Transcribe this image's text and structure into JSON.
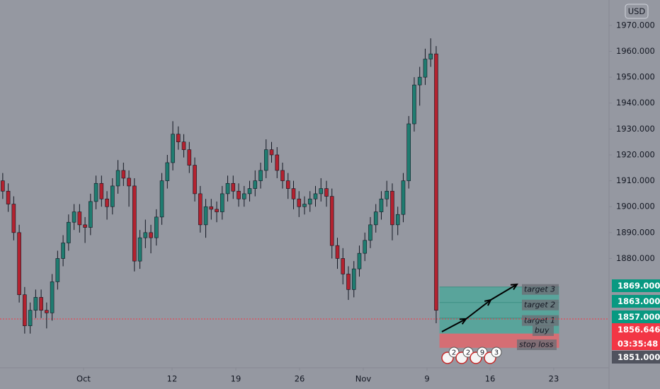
{
  "chart_data": {
    "type": "candlestick",
    "currency": "USD",
    "up_color": "#1f7c70",
    "down_color": "#b3222f",
    "wick_color": "#131722",
    "xlim": [
      -0.5,
      110.5
    ],
    "ylim": [
      1837.8,
      1979.8
    ],
    "yticks": [
      {
        "value": 1880,
        "label": "1880.000"
      },
      {
        "value": 1890,
        "label": "1890.000"
      },
      {
        "value": 1900,
        "label": "1900.000"
      },
      {
        "value": 1910,
        "label": "1910.000"
      },
      {
        "value": 1920,
        "label": "1920.000"
      },
      {
        "value": 1930,
        "label": "1930.000"
      },
      {
        "value": 1940,
        "label": "1940.000"
      },
      {
        "value": 1950,
        "label": "1950.000"
      },
      {
        "value": 1960,
        "label": "1960.000"
      },
      {
        "value": 1970,
        "label": "1970.000"
      }
    ],
    "xticks": [
      {
        "value": 14.73,
        "label": "Oct"
      },
      {
        "value": 30.86,
        "label": "12"
      },
      {
        "value": 42.48,
        "label": "19"
      },
      {
        "value": 54.1,
        "label": "26"
      },
      {
        "value": 65.71,
        "label": "Nov"
      },
      {
        "value": 77.33,
        "label": "9"
      },
      {
        "value": 88.82,
        "label": "16"
      },
      {
        "value": 100.43,
        "label": "23"
      }
    ],
    "open": [
      1910,
      1906,
      1901,
      1890,
      1866,
      1854,
      1860,
      1865,
      1860,
      1859,
      1871,
      1880,
      1886,
      1894,
      1898,
      1893,
      1892,
      1902,
      1909,
      1903,
      1900,
      1908,
      1914,
      1911,
      1908,
      1879,
      1888,
      1890,
      1888,
      1896,
      1910,
      1917,
      1928,
      1925,
      1922,
      1916,
      1905,
      1893,
      1900,
      1899,
      1898,
      1905,
      1909,
      1906,
      1903,
      1905,
      1907,
      1910,
      1914,
      1922,
      1920,
      1914,
      1910,
      1907,
      1903,
      1900,
      1901,
      1903,
      1905,
      1907,
      1904,
      1885,
      1880,
      1874,
      1868,
      1876,
      1882,
      1887,
      1893,
      1898,
      1903,
      1906,
      1893,
      1897,
      1910,
      1932,
      1947,
      1950,
      1957,
      1959
    ],
    "high": [
      1913,
      1909,
      1904,
      1893,
      1869,
      1863,
      1868,
      1868,
      1863,
      1874,
      1883,
      1889,
      1897,
      1901,
      1901,
      1896,
      1905,
      1912,
      1912,
      1906,
      1911,
      1918,
      1917,
      1914,
      1911,
      1891,
      1895,
      1893,
      1899,
      1913,
      1920,
      1933,
      1931,
      1928,
      1925,
      1919,
      1908,
      1903,
      1903,
      1902,
      1908,
      1912,
      1912,
      1909,
      1908,
      1910,
      1914,
      1917,
      1926,
      1925,
      1923,
      1917,
      1913,
      1910,
      1906,
      1904,
      1906,
      1908,
      1911,
      1910,
      1907,
      1888,
      1884,
      1877,
      1879,
      1885,
      1890,
      1896,
      1901,
      1906,
      1910,
      1909,
      1900,
      1913,
      1935,
      1950,
      1954,
      1961,
      1965,
      1962
    ],
    "low": [
      1903,
      1898,
      1887,
      1863,
      1851,
      1851,
      1857,
      1857,
      1853,
      1856,
      1868,
      1877,
      1883,
      1891,
      1890,
      1886,
      1889,
      1899,
      1900,
      1895,
      1897,
      1905,
      1908,
      1900,
      1875,
      1876,
      1884,
      1882,
      1885,
      1893,
      1907,
      1914,
      1922,
      1919,
      1913,
      1902,
      1890,
      1888,
      1895,
      1894,
      1895,
      1902,
      1903,
      1900,
      1900,
      1902,
      1904,
      1907,
      1911,
      1917,
      1911,
      1907,
      1903,
      1899,
      1896,
      1897,
      1898,
      1900,
      1902,
      1900,
      1880,
      1876,
      1870,
      1864,
      1865,
      1873,
      1879,
      1884,
      1890,
      1895,
      1900,
      1887,
      1889,
      1894,
      1907,
      1929,
      1939,
      1947,
      1954,
      1855
    ],
    "close": [
      1906,
      1901,
      1890,
      1866,
      1854,
      1860,
      1865,
      1860,
      1859,
      1871,
      1880,
      1886,
      1894,
      1898,
      1893,
      1892,
      1902,
      1909,
      1903,
      1900,
      1908,
      1914,
      1911,
      1908,
      1879,
      1888,
      1890,
      1888,
      1896,
      1910,
      1917,
      1928,
      1925,
      1922,
      1916,
      1905,
      1893,
      1900,
      1899,
      1898,
      1905,
      1909,
      1906,
      1903,
      1905,
      1907,
      1910,
      1914,
      1922,
      1920,
      1914,
      1910,
      1907,
      1903,
      1900,
      1901,
      1903,
      1905,
      1907,
      1904,
      1885,
      1880,
      1874,
      1868,
      1876,
      1882,
      1887,
      1893,
      1898,
      1903,
      1906,
      1893,
      1897,
      1910,
      1932,
      1947,
      1950,
      1957,
      1959,
      1860
    ],
    "position": {
      "entry": 1851,
      "stop": 1845.5,
      "target_values": [
        1857,
        1863,
        1869
      ],
      "target_labels": [
        "target 1",
        "target 2",
        "target 3"
      ],
      "entry_label": "buy",
      "stop_label": "stop loss",
      "profit_color": "#4fa69a",
      "loss_color": "#e0666c"
    },
    "current_price": {
      "value": 1856.646,
      "label": "1856.646",
      "countdown": "03:35:48",
      "color": "#f23645"
    },
    "price_labels": [
      {
        "value": 1869,
        "label": "1869.000",
        "color": "#089981"
      },
      {
        "value": 1863,
        "label": "1863.000",
        "color": "#089981"
      },
      {
        "value": 1857,
        "label": "1857.000",
        "color": "#089981"
      },
      {
        "value": 1851,
        "label": "1851.000",
        "color": "#50535e"
      }
    ],
    "events": [
      "2",
      "2",
      "9",
      "3"
    ]
  }
}
